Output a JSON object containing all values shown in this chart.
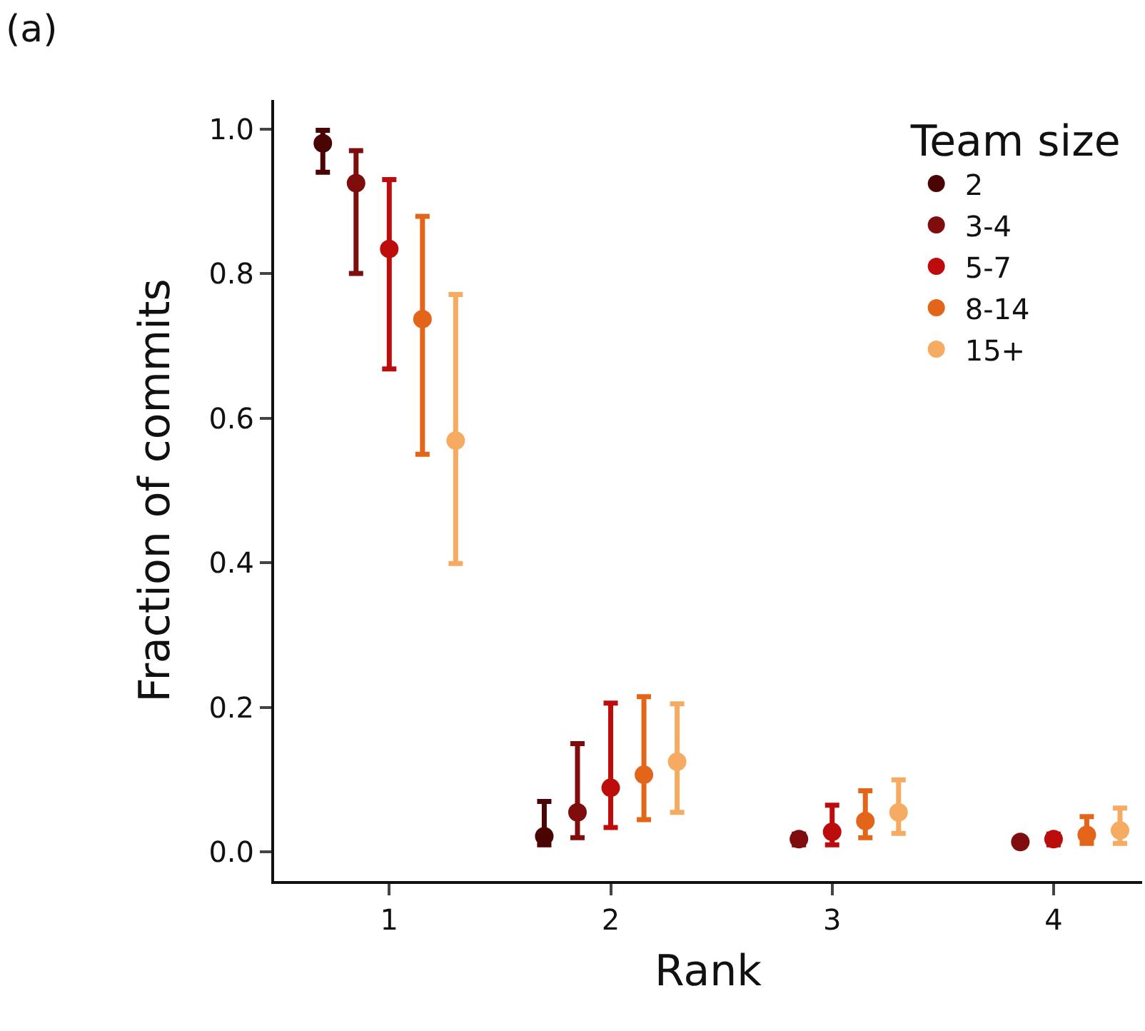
{
  "chart_data": {
    "type": "scatter",
    "title": "(a)",
    "xlabel": "Rank",
    "ylabel": "Fraction of commits",
    "legend_title": "Team size",
    "legend": "top right",
    "grid": false,
    "marker": "circle",
    "xlim": [
      0.48,
      4.4
    ],
    "xticks": [
      1,
      2,
      3,
      4
    ],
    "ylim": [
      -0.04,
      1.04
    ],
    "yticks": [
      {
        "value": 0,
        "label": "0.0"
      },
      {
        "value": 0.2,
        "label": "0.2"
      },
      {
        "value": 0.4,
        "label": "0.4"
      },
      {
        "value": 0.6,
        "label": "0.6"
      },
      {
        "value": 0.8,
        "label": "0.8"
      },
      {
        "value": 1,
        "label": "1.0"
      }
    ],
    "series": [
      {
        "name": "2",
        "color": "#4a0404",
        "x": [
          0.7,
          1.7
        ],
        "values": [
          0.98,
          0.022
        ],
        "errors": [
          [
            0.94,
            0.998
          ],
          [
            0.01,
            0.07
          ]
        ]
      },
      {
        "name": "3-4",
        "color": "#800d0d",
        "x": [
          0.85,
          1.85,
          2.85,
          3.85
        ],
        "values": [
          0.925,
          0.055,
          0.018,
          0.014
        ],
        "errors": [
          [
            0.8,
            0.97
          ],
          [
            0.02,
            0.15
          ],
          [
            0.01,
            0.025
          ],
          [
            0.01,
            0.018
          ]
        ]
      },
      {
        "name": "5-7",
        "color": "#bd0c0c",
        "x": [
          1,
          2,
          3,
          4
        ],
        "values": [
          0.834,
          0.089,
          0.028,
          0.018
        ],
        "errors": [
          [
            0.668,
            0.93
          ],
          [
            0.034,
            0.206
          ],
          [
            0.01,
            0.065
          ],
          [
            0.01,
            0.025
          ]
        ]
      },
      {
        "name": "8-14",
        "color": "#e3651a",
        "x": [
          1.15,
          2.15,
          3.15,
          4.15
        ],
        "values": [
          0.737,
          0.107,
          0.043,
          0.024
        ],
        "errors": [
          [
            0.55,
            0.879
          ],
          [
            0.045,
            0.215
          ],
          [
            0.02,
            0.085
          ],
          [
            0.012,
            0.049
          ]
        ]
      },
      {
        "name": "15+",
        "color": "#f5ac62",
        "x": [
          1.3,
          2.3,
          3.3,
          4.3
        ],
        "values": [
          0.569,
          0.125,
          0.055,
          0.03
        ],
        "errors": [
          [
            0.399,
            0.771
          ],
          [
            0.055,
            0.205
          ],
          [
            0.026,
            0.1
          ],
          [
            0.012,
            0.061
          ]
        ]
      }
    ]
  }
}
